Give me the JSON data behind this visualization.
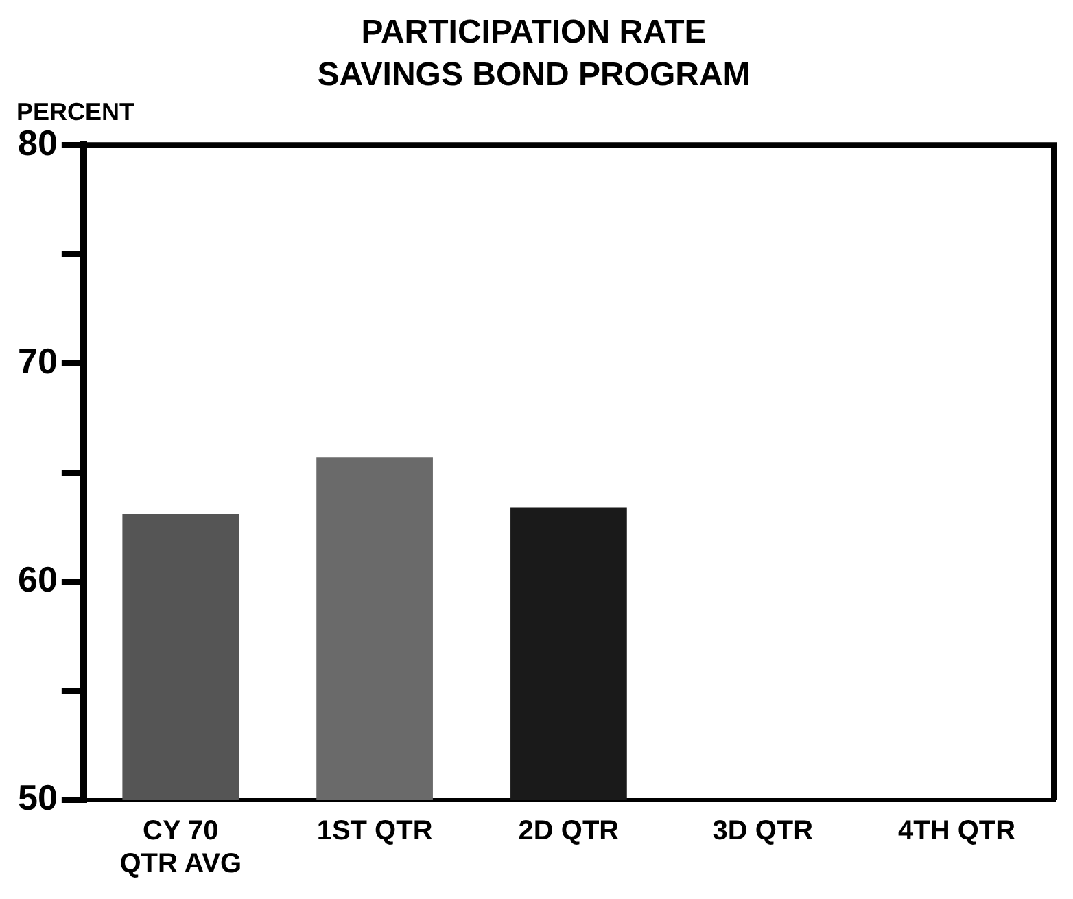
{
  "chart_data": {
    "type": "bar",
    "title": "PARTICIPATION RATE",
    "subtitle": "SAVINGS BOND PROGRAM",
    "ylabel": "PERCENT",
    "categories": [
      "CY 70\nQTR AVG",
      "1ST QTR",
      "2D QTR",
      "3D QTR",
      "4TH QTR"
    ],
    "values": [
      63.1,
      65.7,
      63.4,
      null,
      null
    ],
    "colors": [
      "#555555",
      "#6a6a6a",
      "#1a1a1a",
      "#1a1a1a",
      "#1a1a1a"
    ],
    "ylim": [
      50,
      80
    ],
    "yticks": [
      50,
      {
        "value": 55,
        "label": null
      },
      60,
      {
        "value": 65,
        "label": null
      },
      70,
      {
        "value": 75,
        "label": null
      },
      80
    ],
    "grid": false,
    "legend": false
  }
}
